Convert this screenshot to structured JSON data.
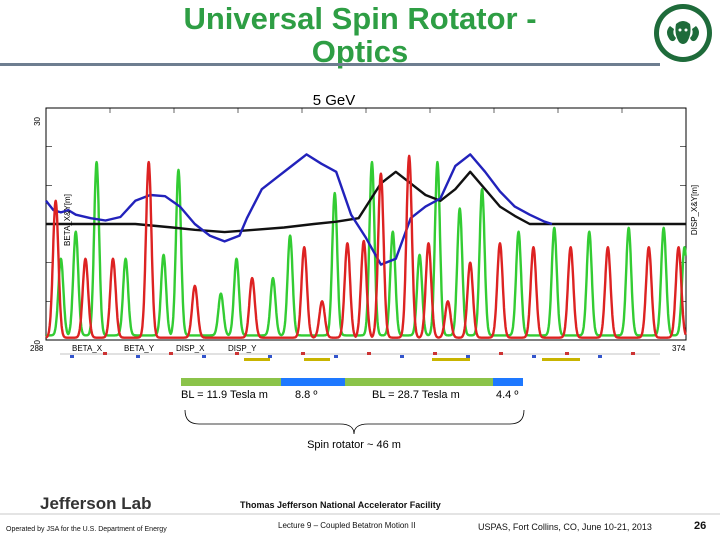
{
  "title": "Universal Spin Rotator - Optics",
  "colors": {
    "title": "#2e9e44",
    "beta_x": "#dd2222",
    "beta_y": "#33cc33",
    "disp_x": "#111111",
    "disp_y": "#2222bb",
    "magnet_green": "#8bc34a",
    "magnet_blue": "#1e78ff"
  },
  "chart_data": {
    "type": "line",
    "title": "5 GeV",
    "ylabel_left": "BETA_X&Y[m]",
    "ylabel_right": "DISP_X&Y[m]",
    "ylim_left": [
      0,
      30
    ],
    "ylim_right": [
      -1,
      1
    ],
    "xlim": [
      288,
      374
    ],
    "x_tick_labels": [
      "288",
      "374"
    ],
    "y_tick_labels": [
      "0",
      "30"
    ],
    "legend": [
      "BETA_X",
      "BETA_Y",
      "DISP_X",
      "DISP_Y"
    ],
    "series": [
      {
        "name": "BETA_X",
        "peaks_x": [
          289.3,
          293.3,
          297.0,
          301.8,
          308.0,
          315.7,
          322.7,
          325.1,
          328.5,
          330.7,
          333.0,
          336.8,
          339.4,
          342.0,
          345.0,
          349.0,
          353.5,
          358.5,
          363.5,
          369.0,
          373.0
        ],
        "peaks_y": [
          18,
          10.5,
          10.5,
          23,
          7,
          8,
          12,
          5,
          12.5,
          12.8,
          21.5,
          23.8,
          12.5,
          5,
          10,
          12.5,
          12,
          12,
          12,
          12,
          12
        ],
        "base": 0.3,
        "width": 0.65
      },
      {
        "name": "BETA_Y",
        "peaks_x": [
          290.0,
          292.0,
          294.8,
          298.7,
          303.8,
          305.8,
          311.5,
          313.6,
          318.5,
          320.8,
          326.8,
          331.8,
          334.6,
          338.2,
          340.6,
          343.6,
          346.6,
          351.5,
          356.3,
          361.0,
          366.3,
          371.0,
          373.8
        ],
        "peaks_y": [
          10.5,
          14,
          23,
          10.5,
          11,
          22,
          6,
          10.5,
          8,
          13.5,
          19,
          23,
          14,
          11,
          23,
          17,
          19.5,
          14,
          14.5,
          14,
          14.5,
          14.5,
          12
        ],
        "base": 0.6,
        "width": 0.6
      },
      {
        "name": "DISP_X",
        "x": [
          288,
          295,
          300,
          305,
          308,
          312,
          316,
          320,
          324,
          327,
          330,
          333,
          335,
          337,
          339,
          341,
          343,
          345,
          347,
          349,
          351,
          353,
          358,
          362,
          374
        ],
        "y": [
          0,
          0,
          0,
          -0.03,
          -0.05,
          -0.07,
          -0.05,
          -0.03,
          0,
          0.02,
          0.05,
          0.35,
          0.45,
          0.35,
          0.25,
          0.2,
          0.3,
          0.45,
          0.3,
          0.15,
          0.07,
          0,
          0,
          0,
          0
        ]
      },
      {
        "name": "DISP_Y",
        "x": [
          288,
          289,
          290,
          291,
          292,
          294,
          296,
          298,
          300,
          302,
          304,
          306,
          308,
          310,
          312,
          314,
          315,
          317,
          319,
          321,
          323,
          325,
          327,
          329,
          331,
          333,
          335,
          337,
          339,
          341,
          343,
          345,
          347,
          349,
          351,
          353,
          355,
          356
        ],
        "y": [
          0.2,
          0.12,
          0.1,
          0.12,
          0.08,
          0.05,
          0.03,
          0.06,
          0.2,
          0.25,
          0.24,
          0.15,
          0.0,
          -0.1,
          -0.15,
          -0.1,
          0.05,
          0.3,
          0.4,
          0.5,
          0.6,
          0.52,
          0.45,
          0.08,
          -0.12,
          -0.35,
          -0.3,
          0.05,
          0.15,
          0.22,
          0.5,
          0.6,
          0.45,
          0.28,
          0.15,
          0.08,
          0.02,
          0
        ]
      }
    ]
  },
  "annotations": {
    "bl_left": "BL = 11.9 Tesla m",
    "angle_left": "8.8 º",
    "bl_right": "BL = 28.7 Tesla m",
    "angle_right": "4.4 º",
    "brace_label": "Spin rotator ~ 46 m"
  },
  "footer": {
    "lab": "Jefferson Lab",
    "facility": "Thomas Jefferson National Accelerator Facility",
    "operated": "Operated by JSA for the U.S. Department of Energy",
    "lecture": "Lecture 9 – Coupled Betatron Motion II",
    "event": "USPAS, Fort Collins, CO, June 10-21, 2013",
    "page": "26"
  }
}
